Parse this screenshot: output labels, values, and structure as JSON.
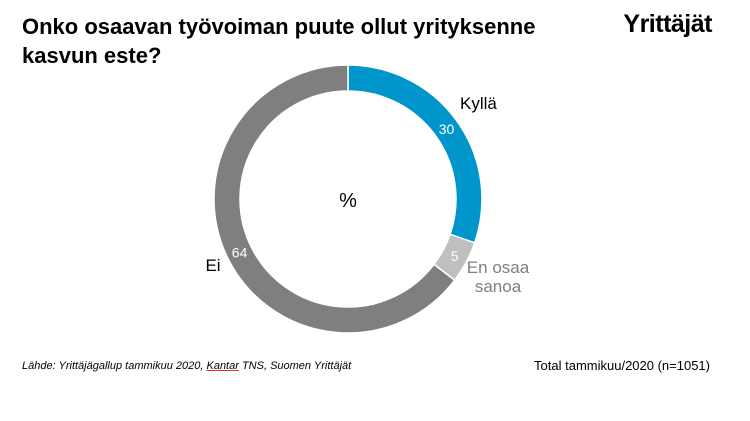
{
  "header": {
    "title": "Onko osaavan työvoiman puute ollut yrityksenne kasvun este?",
    "brand": "Yrittäjät"
  },
  "chart_data": {
    "type": "pie",
    "center_label": "%",
    "categories": [
      "Kyllä",
      "En osaa sanoa",
      "Ei"
    ],
    "values": [
      30,
      5,
      64
    ],
    "colors": [
      "#0096CC",
      "#BFBFBF",
      "#7F7F7F"
    ],
    "category_label_colors": [
      "#000000",
      "#7F7F7F",
      "#000000"
    ]
  },
  "footer": {
    "source_prefix": "Lähde: Yrittäjägallup tammikuu 2020, ",
    "source_kantar": "Kantar",
    "source_suffix": " TNS, Suomen Yrittäjät",
    "total": "Total tammikuu/2020 (n=1051)"
  }
}
